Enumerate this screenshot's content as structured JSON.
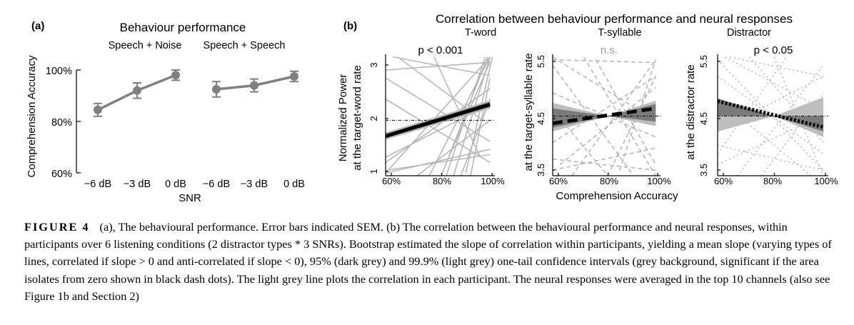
{
  "panel_a": {
    "letter": "(a)",
    "title": "Behaviour performance",
    "group_labels": [
      "Speech + Noise",
      "Speech + Speech"
    ],
    "ylabel": "Comprehension Accuracy",
    "xlabel": "SNR",
    "ytick_labels": [
      "100%",
      "80%",
      "60%"
    ],
    "xtick_labels": [
      "−6 dB",
      "−3 dB",
      "0 dB",
      "−6 dB",
      "−3 dB",
      "0 dB"
    ]
  },
  "panel_b": {
    "letter": "(b)",
    "title": "Correlation between behaviour performance and neural responses",
    "xlabel": "Comprehension Accuracy",
    "subplots": [
      {
        "name": "T-word",
        "pvalue": "p < 0.001",
        "ylabel_lines": [
          "Normalized Power",
          "at the target-word rate"
        ],
        "ytick_labels": [
          "3",
          "2",
          "1"
        ],
        "xtick_labels": [
          "60%",
          "80%",
          "100%"
        ]
      },
      {
        "name": "T-syllable",
        "pvalue": "n.s.",
        "ylabel_lines": [
          "at the target-syllable rate"
        ],
        "ytick_labels": [
          "5.5",
          "4.5",
          "3.5"
        ],
        "xtick_labels": [
          "60%",
          "80%",
          "100%"
        ]
      },
      {
        "name": "Distractor",
        "pvalue": "p < 0.05",
        "ylabel_lines": [
          "at the distractor rate"
        ],
        "ytick_labels": [
          "5.5",
          "4.5",
          "3.5"
        ],
        "xtick_labels": [
          "60%",
          "80%",
          "100%"
        ]
      }
    ]
  },
  "caption": {
    "label": "FIGURE 4",
    "text": "(a), The behavioural performance. Error bars indicated SEM. (b) The correlation between the behavioural performance and neural responses, within participants over 6 listening conditions (2 distractor types * 3 SNRs). Bootstrap estimated the slope of correlation within participants, yielding a mean slope (varying types of lines, correlated if slope > 0 and anti-correlated if slope < 0), 95% (dark grey) and 99.9% (light grey) one-tail confidence intervals (grey background, significant if the area isolates from zero shown in black dash dots). The light grey line plots the correlation in each participant. The neural responses were averaged in the top 10 channels (also see Figure 1b and Section 2)"
  },
  "colors": {
    "marker": "#808080",
    "light_line": "#b4b4b4",
    "dark_band": "#7a7a7a",
    "light_band": "#bdbdbd",
    "mean_line": "#000000"
  },
  "chart_data": [
    {
      "type": "line",
      "title": "Behaviour performance",
      "xlabel": "SNR",
      "ylabel": "Comprehension Accuracy",
      "ylim": [
        60,
        100
      ],
      "series": [
        {
          "name": "Speech + Noise",
          "x": [
            "−6 dB",
            "−3 dB",
            "0 dB"
          ],
          "values": [
            84.5,
            92,
            98
          ],
          "sem": [
            2.5,
            3,
            2
          ]
        },
        {
          "name": "Speech + Speech",
          "x": [
            "−6 dB",
            "−3 dB",
            "0 dB"
          ],
          "values": [
            92.5,
            94,
            97.5
          ],
          "sem": [
            3,
            2.5,
            2
          ]
        }
      ]
    },
    {
      "type": "line",
      "title": "T-word",
      "annotation": "p < 0.001",
      "xlim": [
        57,
        102
      ],
      "ylim": [
        0.95,
        3.25
      ],
      "mean_line": {
        "x": [
          57,
          100
        ],
        "y": [
          1.7,
          2.3
        ]
      },
      "ci_999": {
        "x": [
          57,
          100
        ],
        "lower": [
          1.63,
          2.22
        ],
        "upper": [
          1.77,
          2.38
        ]
      },
      "ci_95": {
        "x": [
          57,
          100
        ],
        "lower": [
          1.66,
          2.25
        ],
        "upper": [
          1.74,
          2.35
        ]
      },
      "participants": [
        {
          "x": [
            57,
            100
          ],
          "y": [
            1.0,
            3.2
          ]
        },
        {
          "x": [
            57,
            100
          ],
          "y": [
            1.2,
            2.6
          ]
        },
        {
          "x": [
            57,
            100
          ],
          "y": [
            2.8,
            1.6
          ]
        },
        {
          "x": [
            57,
            100
          ],
          "y": [
            2.4,
            1.2
          ]
        },
        {
          "x": [
            57,
            100
          ],
          "y": [
            1.3,
            2.3
          ]
        },
        {
          "x": [
            57,
            100
          ],
          "y": [
            1.0,
            1.45
          ]
        },
        {
          "x": [
            57,
            100
          ],
          "y": [
            1.05,
            1.35
          ]
        },
        {
          "x": [
            57,
            100
          ],
          "y": [
            2.95,
            3.1
          ]
        },
        {
          "x": [
            60,
            100
          ],
          "y": [
            3.2,
            2.85
          ]
        },
        {
          "x": [
            62,
            97
          ],
          "y": [
            3.2,
            2.0
          ]
        },
        {
          "x": [
            75,
            100
          ],
          "y": [
            0.95,
            3.2
          ]
        },
        {
          "x": [
            80,
            99
          ],
          "y": [
            0.95,
            3.2
          ]
        },
        {
          "x": [
            82,
            98
          ],
          "y": [
            0.95,
            3.2
          ]
        },
        {
          "x": [
            85,
            100
          ],
          "y": [
            0.95,
            3.2
          ]
        },
        {
          "x": [
            88,
            100
          ],
          "y": [
            0.95,
            2.4
          ]
        },
        {
          "x": [
            90,
            101
          ],
          "y": [
            1.0,
            3.2
          ]
        },
        {
          "x": [
            70,
            100
          ],
          "y": [
            0.95,
            2.0
          ]
        },
        {
          "x": [
            77,
            96
          ],
          "y": [
            3.2,
            1.3
          ]
        },
        {
          "x": [
            83,
            100
          ],
          "y": [
            1.3,
            3.1
          ]
        },
        {
          "x": [
            92,
            100
          ],
          "y": [
            0.95,
            2.8
          ]
        }
      ]
    },
    {
      "type": "line",
      "title": "T-syllable",
      "annotation": "n.s.",
      "xlim": [
        57,
        102
      ],
      "ylim": [
        3.4,
        5.6
      ],
      "mean_line": {
        "x": [
          57,
          100
        ],
        "y": [
          4.35,
          4.62
        ]
      },
      "ci_999": {
        "x": [
          57,
          80,
          100
        ],
        "lower": [
          4.2,
          4.48,
          4.3
        ],
        "upper": [
          4.72,
          4.48,
          4.76
        ]
      },
      "ci_95": {
        "x": [
          57,
          80,
          100
        ],
        "lower": [
          4.27,
          4.48,
          4.38
        ],
        "upper": [
          4.62,
          4.48,
          4.7
        ]
      },
      "participants": [
        {
          "x": [
            57,
            100
          ],
          "y": [
            5.55,
            4.4
          ]
        },
        {
          "x": [
            57,
            100
          ],
          "y": [
            4.0,
            5.2
          ]
        },
        {
          "x": [
            57,
            90
          ],
          "y": [
            5.4,
            3.45
          ]
        },
        {
          "x": [
            60,
            100
          ],
          "y": [
            3.6,
            5.0
          ]
        },
        {
          "x": [
            57,
            100
          ],
          "y": [
            3.5,
            3.9
          ]
        },
        {
          "x": [
            57,
            100
          ],
          "y": [
            4.9,
            4.1
          ]
        },
        {
          "x": [
            65,
            100
          ],
          "y": [
            3.4,
            5.5
          ]
        },
        {
          "x": [
            70,
            100
          ],
          "y": [
            5.55,
            3.4
          ]
        },
        {
          "x": [
            57,
            100
          ],
          "y": [
            5.5,
            5.45
          ]
        },
        {
          "x": [
            75,
            100
          ],
          "y": [
            5.5,
            3.6
          ]
        },
        {
          "x": [
            80,
            100
          ],
          "y": [
            3.4,
            5.2
          ]
        },
        {
          "x": [
            57,
            80
          ],
          "y": [
            4.6,
            3.4
          ]
        },
        {
          "x": [
            85,
            100
          ],
          "y": [
            3.5,
            5.5
          ]
        },
        {
          "x": [
            57,
            100
          ],
          "y": [
            3.7,
            3.5
          ]
        }
      ]
    },
    {
      "type": "line",
      "title": "Distractor",
      "annotation": "p < 0.05",
      "xlim": [
        57,
        102
      ],
      "ylim": [
        3.4,
        5.6
      ],
      "mean_line": {
        "x": [
          57,
          100
        ],
        "y": [
          4.75,
          4.28
        ]
      },
      "ci_999": {
        "x": [
          57,
          80,
          100
        ],
        "lower": [
          4.2,
          4.48,
          4.1
        ],
        "upper": [
          4.8,
          4.48,
          4.82
        ]
      },
      "ci_95": {
        "x": [
          57,
          80,
          100
        ],
        "lower": [
          4.48,
          4.48,
          4.2
        ],
        "upper": [
          4.8,
          4.48,
          4.48
        ]
      },
      "participants": [
        {
          "x": [
            57,
            100
          ],
          "y": [
            5.5,
            3.5
          ]
        },
        {
          "x": [
            60,
            100
          ],
          "y": [
            5.55,
            4.6
          ]
        },
        {
          "x": [
            57,
            95
          ],
          "y": [
            4.8,
            3.4
          ]
        },
        {
          "x": [
            57,
            100
          ],
          "y": [
            4.2,
            5.2
          ]
        },
        {
          "x": [
            65,
            100
          ],
          "y": [
            3.4,
            5.4
          ]
        },
        {
          "x": [
            57,
            85
          ],
          "y": [
            3.8,
            5.55
          ]
        },
        {
          "x": [
            70,
            100
          ],
          "y": [
            5.55,
            4.0
          ]
        },
        {
          "x": [
            57,
            100
          ],
          "y": [
            3.95,
            3.5
          ]
        },
        {
          "x": [
            75,
            100
          ],
          "y": [
            3.4,
            4.9
          ]
        },
        {
          "x": [
            57,
            100
          ],
          "y": [
            5.2,
            3.8
          ]
        },
        {
          "x": [
            80,
            100
          ],
          "y": [
            5.55,
            3.4
          ]
        },
        {
          "x": [
            57,
            100
          ],
          "y": [
            3.6,
            4.5
          ]
        },
        {
          "x": [
            62,
            100
          ],
          "y": [
            5.55,
            5.2
          ]
        }
      ]
    }
  ]
}
